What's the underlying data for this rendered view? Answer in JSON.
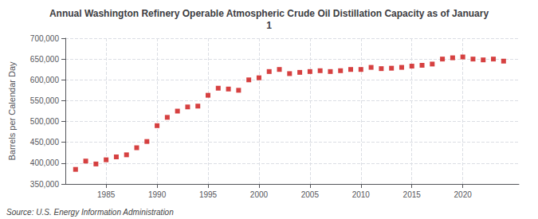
{
  "chart_data": {
    "type": "scatter",
    "title": "Annual Washington Refinery Operable Atmospheric Crude Oil Distillation Capacity as of January\n1",
    "ylabel": "Barrels per Calendar Day",
    "annotation": "Source: U.S. Energy Information Administration",
    "x": [
      1982,
      1983,
      1984,
      1985,
      1986,
      1987,
      1988,
      1989,
      1990,
      1991,
      1992,
      1993,
      1994,
      1995,
      1996,
      1997,
      1998,
      1999,
      2000,
      2001,
      2002,
      2003,
      2004,
      2005,
      2006,
      2007,
      2008,
      2009,
      2010,
      2011,
      2012,
      2013,
      2014,
      2015,
      2016,
      2017,
      2018,
      2019,
      2020,
      2021,
      2022,
      2023,
      2024
    ],
    "values": [
      385000,
      405000,
      398000,
      408000,
      415000,
      420000,
      437000,
      452000,
      490000,
      510000,
      525000,
      535000,
      537000,
      563000,
      580000,
      578000,
      575000,
      600000,
      605000,
      620000,
      625000,
      615000,
      618000,
      620000,
      622000,
      620000,
      622000,
      625000,
      625000,
      630000,
      627000,
      628000,
      630000,
      633000,
      635000,
      638000,
      650000,
      653000,
      655000,
      650000,
      648000,
      650000,
      645000
    ],
    "color": "#cc1111",
    "marker": "square",
    "xlim": [
      1981,
      2025.5
    ],
    "xticks": [
      1985,
      1990,
      1995,
      2000,
      2005,
      2010,
      2015,
      2020
    ],
    "ylim": [
      350000,
      700000
    ],
    "yticks": [
      {
        "value": 350000,
        "label": "350,000"
      },
      {
        "value": 400000,
        "label": "400,000"
      },
      {
        "value": 450000,
        "label": "450,000"
      },
      {
        "value": 500000,
        "label": "500,000"
      },
      {
        "value": 550000,
        "label": "550,000"
      },
      {
        "value": 600000,
        "label": "600,000"
      },
      {
        "value": 650000,
        "label": "650,000"
      },
      {
        "value": 700000,
        "label": "700,000"
      }
    ],
    "grid": true
  }
}
